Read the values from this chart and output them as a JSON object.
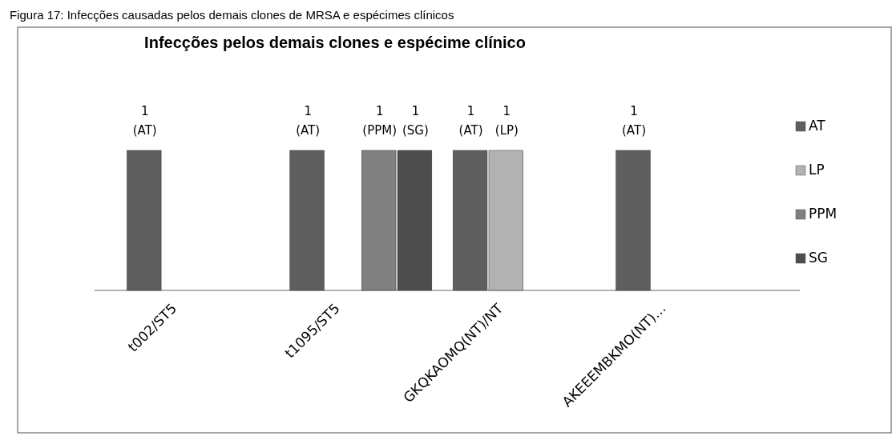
{
  "chart_data": {
    "type": "bar",
    "title": "Infecções pelos demais clones e espécime clínico",
    "annotations": [
      "Figura 17: Infecções causadas pelos demais clones de MRSA e espécimes clínicos"
    ],
    "categories": [
      "t002/ST5",
      "t1095/ST5",
      "GKQKAOMQ(NT)/NT",
      "AKEEEMBKMO(NT)…"
    ],
    "series": [
      {
        "name": "AT",
        "color": "#5f5f5f",
        "values": [
          1,
          1,
          1,
          1
        ],
        "value_labels": [
          "1 (AT)",
          "1 (AT)",
          "1 (AT)",
          "1 (AT)"
        ]
      },
      {
        "name": "LP",
        "color": "#b2b2b2",
        "values": [
          null,
          null,
          1,
          null
        ],
        "value_labels": [
          null,
          null,
          "1 (LP)",
          null
        ]
      },
      {
        "name": "PPM",
        "color": "#808080",
        "values": [
          null,
          1,
          null,
          null
        ],
        "value_labels": [
          null,
          "1 (PPM)",
          null,
          null
        ]
      },
      {
        "name": "SG",
        "color": "#4d4d4d",
        "values": [
          null,
          1,
          null,
          null
        ],
        "value_labels": [
          null,
          "1 (SG)",
          null,
          null
        ]
      }
    ],
    "legend": "right",
    "tick_labels": "x"
  }
}
